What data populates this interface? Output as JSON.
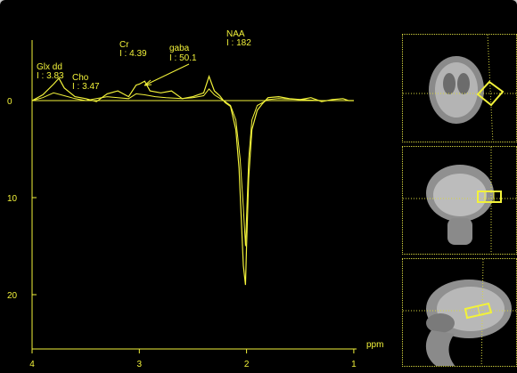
{
  "colors": {
    "trace": "#f2f23a",
    "background": "#000000",
    "grid": "#d6d640"
  },
  "chart_data": {
    "type": "line",
    "xlabel": "ppm",
    "ylabel": "",
    "x_ticks": [
      "4",
      "3",
      "2",
      "1"
    ],
    "y_ticks": [
      "0",
      "10",
      "20"
    ],
    "xlim": [
      4.0,
      0.9
    ],
    "ylim": [
      -3,
      25
    ],
    "x_reversed": true,
    "series": [
      {
        "x": [
          4.0,
          3.9,
          3.8,
          3.75,
          3.7,
          3.6,
          3.5,
          3.4,
          3.3,
          3.2,
          3.1,
          3.03,
          3.0,
          2.95,
          2.9,
          2.8,
          2.7,
          2.6,
          2.5,
          2.4,
          2.35,
          2.3,
          2.25,
          2.2,
          2.15,
          2.1,
          2.07,
          2.05,
          2.03,
          2.01,
          2.0,
          1.98,
          1.95,
          1.9,
          1.85,
          1.8,
          1.7,
          1.6,
          1.5,
          1.4,
          1.3,
          1.2,
          1.1,
          1.05,
          1.0
        ],
        "y": [
          0,
          -0.6,
          -1.7,
          -2.3,
          -1.3,
          -0.4,
          -0.2,
          0.1,
          -0.7,
          -1.0,
          -0.4,
          -1.6,
          -1.7,
          -2.0,
          -1.0,
          -0.8,
          -1.0,
          -0.2,
          -0.4,
          -0.8,
          -2.5,
          -1.0,
          -0.5,
          0.2,
          0.6,
          3.0,
          7.0,
          12.0,
          17.0,
          19.0,
          15.0,
          8.0,
          3.0,
          1.0,
          0.3,
          -0.3,
          -0.4,
          -0.2,
          -0.1,
          -0.3,
          0.1,
          -0.1,
          -0.2,
          0.0,
          0.0
        ]
      },
      {
        "x": [
          4.0,
          3.9,
          3.8,
          3.7,
          3.6,
          3.5,
          3.4,
          3.3,
          3.2,
          3.1,
          3.03,
          2.95,
          2.85,
          2.75,
          2.6,
          2.5,
          2.4,
          2.35,
          2.3,
          2.2,
          2.15,
          2.1,
          2.06,
          2.03,
          2.01,
          2.0,
          1.98,
          1.95,
          1.9,
          1.8,
          1.7,
          1.5,
          1.3,
          1.1,
          1.0
        ],
        "y": [
          0,
          -0.3,
          -0.8,
          -0.5,
          -0.2,
          0,
          -0.2,
          -0.4,
          -0.3,
          -0.2,
          -0.7,
          -0.6,
          -0.4,
          -0.3,
          -0.2,
          -0.3,
          -0.5,
          -1.2,
          -0.6,
          0.1,
          0.5,
          2.0,
          6.0,
          11.0,
          15.0,
          12.0,
          6.0,
          2.0,
          0.5,
          -0.1,
          -0.2,
          -0.1,
          0,
          0,
          0
        ]
      }
    ],
    "annotations": [
      {
        "name": "Glx dd",
        "value": "I : 3.83",
        "x": 3.75
      },
      {
        "name": "Cho",
        "value": "I : 3.47",
        "x": 3.2
      },
      {
        "name": "Cr",
        "value": "I : 4.39",
        "x": 3.03
      },
      {
        "name": "gaba",
        "value": "I : 50.1",
        "x": 2.95
      },
      {
        "name": "NAA",
        "value": "I : 182",
        "x": 2.01
      }
    ]
  },
  "thumbnails": [
    {
      "view": "axial"
    },
    {
      "view": "coronal"
    },
    {
      "view": "sagittal"
    }
  ]
}
